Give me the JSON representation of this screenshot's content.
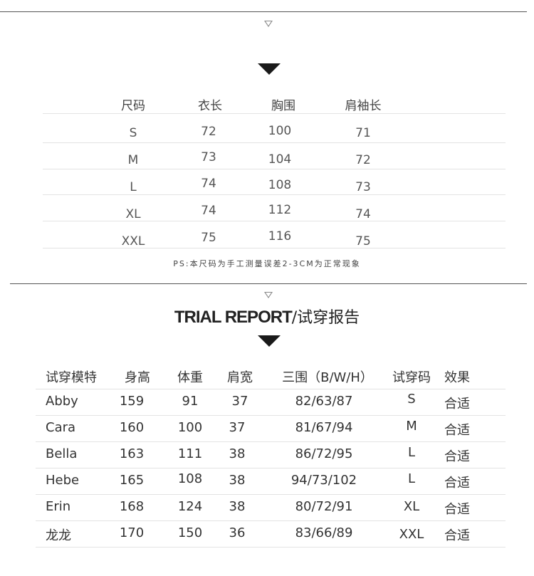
{
  "size_table": {
    "headers": [
      "尺码",
      "衣长",
      "胸围",
      "肩袖长"
    ],
    "rows": [
      [
        "S",
        "72",
        "100",
        "71"
      ],
      [
        "M",
        "73",
        "104",
        "72"
      ],
      [
        "L",
        "74",
        "108",
        "73"
      ],
      [
        "XL",
        "74",
        "112",
        "74"
      ],
      [
        "XXL",
        "75",
        "116",
        "75"
      ]
    ],
    "note": "PS:本尺码为手工测量误差2-3CM为正常现象"
  },
  "trial_report": {
    "title_en": "TRIAL REPORT",
    "title_cn": "/试穿报告",
    "headers": [
      "试穿模特",
      "身高",
      "体重",
      "肩宽",
      "三围（B/W/H）",
      "试穿码",
      "效果"
    ],
    "rows": [
      [
        "Abby",
        "159",
        "91",
        "37",
        "82/63/87",
        "S",
        "合适"
      ],
      [
        "Cara",
        "160",
        "100",
        "37",
        "81/67/94",
        "M",
        "合适"
      ],
      [
        "Bella",
        "163",
        "111",
        "38",
        "86/72/95",
        "L",
        "合适"
      ],
      [
        "Hebe",
        "165",
        "108",
        "38",
        "94/73/102",
        "L",
        "合适"
      ],
      [
        "Erin",
        "168",
        "124",
        "38",
        "80/72/91",
        "XL",
        "合适"
      ],
      [
        "龙龙",
        "170",
        "150",
        "36",
        "83/66/89",
        "XXL",
        "合适"
      ]
    ]
  }
}
